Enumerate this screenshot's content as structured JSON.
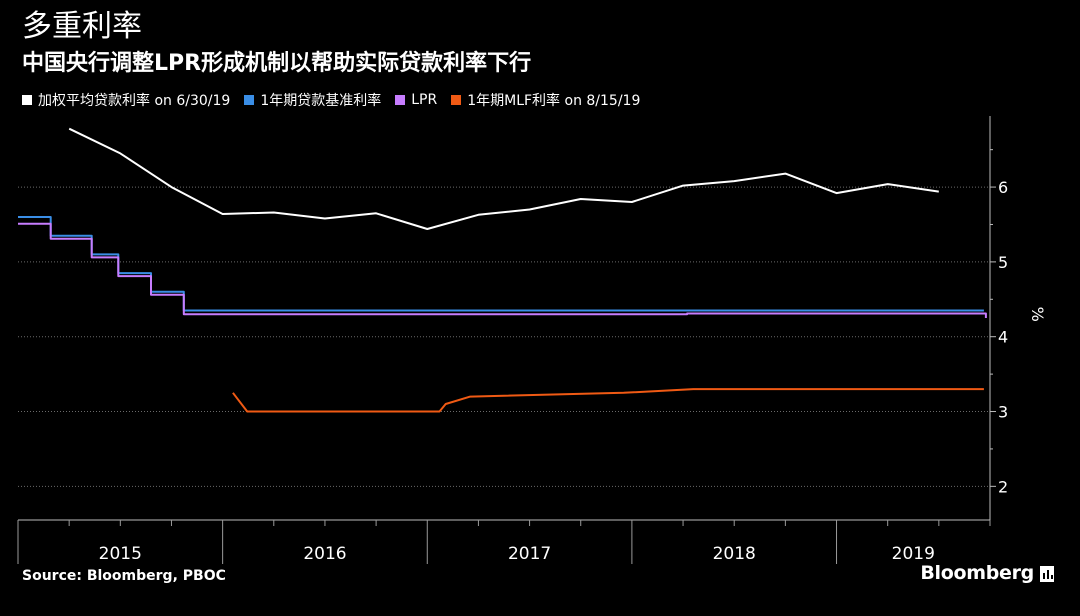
{
  "header": {
    "title": "多重利率",
    "subtitle": "中国央行调整LPR形成机制以帮助实际贷款利率下行"
  },
  "legend": [
    {
      "label": "加权平均贷款利率 on 6/30/19",
      "color": "#ffffff"
    },
    {
      "label": "1年期贷款基准利率",
      "color": "#3a8ee6"
    },
    {
      "label": "LPR",
      "color": "#c77dff"
    },
    {
      "label": "1年期MLF利率 on 8/15/19",
      "color": "#f05a14"
    }
  ],
  "footer": {
    "source": "Source: Bloomberg, PBOC",
    "logo": "Bloomberg"
  },
  "chart_data": {
    "type": "line",
    "title": "多重利率",
    "subtitle": "中国央行调整LPR形成机制以帮助实际贷款利率下行",
    "ylabel": "%",
    "ylim": [
      1.55,
      6.95
    ],
    "xlim": [
      2015.0,
      2019.75
    ],
    "y_ticks": [
      2,
      3,
      4,
      5,
      6
    ],
    "x_ticks": [
      "2015",
      "2016",
      "2017",
      "2018",
      "2019"
    ],
    "grid": true,
    "y_axis_side": "right",
    "legend_position": "top-left",
    "series": [
      {
        "name": "加权平均贷款利率 on 6/30/19",
        "color": "#ffffff",
        "step": false,
        "points": [
          [
            2015.25,
            6.78
          ],
          [
            2015.5,
            6.45
          ],
          [
            2015.75,
            6.0
          ],
          [
            2016.0,
            5.64
          ],
          [
            2016.25,
            5.66
          ],
          [
            2016.5,
            5.58
          ],
          [
            2016.75,
            5.65
          ],
          [
            2017.0,
            5.44
          ],
          [
            2017.25,
            5.63
          ],
          [
            2017.5,
            5.7
          ],
          [
            2017.75,
            5.84
          ],
          [
            2018.0,
            5.8
          ],
          [
            2018.25,
            6.02
          ],
          [
            2018.5,
            6.08
          ],
          [
            2018.75,
            6.18
          ],
          [
            2019.0,
            5.92
          ],
          [
            2019.25,
            6.04
          ],
          [
            2019.5,
            5.94
          ]
        ]
      },
      {
        "name": "1年期贷款基准利率",
        "color": "#3a8ee6",
        "step": true,
        "points": [
          [
            2015.0,
            5.6
          ],
          [
            2015.16,
            5.35
          ],
          [
            2015.36,
            5.1
          ],
          [
            2015.49,
            4.85
          ],
          [
            2015.65,
            4.6
          ],
          [
            2015.81,
            4.35
          ],
          [
            2019.72,
            4.35
          ]
        ]
      },
      {
        "name": "LPR",
        "color": "#c77dff",
        "step": true,
        "points": [
          [
            2015.0,
            5.51
          ],
          [
            2015.16,
            5.31
          ],
          [
            2015.36,
            5.06
          ],
          [
            2015.49,
            4.81
          ],
          [
            2015.65,
            4.56
          ],
          [
            2015.81,
            4.3
          ],
          [
            2018.27,
            4.31
          ],
          [
            2019.72,
            4.31
          ],
          [
            2019.73,
            4.25
          ]
        ]
      },
      {
        "name": "1年期MLF利率 on 8/15/19",
        "color": "#f05a14",
        "step": true,
        "points": [
          [
            2016.05,
            3.25
          ],
          [
            2016.12,
            3.0
          ],
          [
            2017.06,
            3.0
          ],
          [
            2017.09,
            3.1
          ],
          [
            2017.21,
            3.2
          ],
          [
            2017.96,
            3.25
          ],
          [
            2018.3,
            3.3
          ],
          [
            2019.72,
            3.3
          ]
        ]
      }
    ]
  }
}
